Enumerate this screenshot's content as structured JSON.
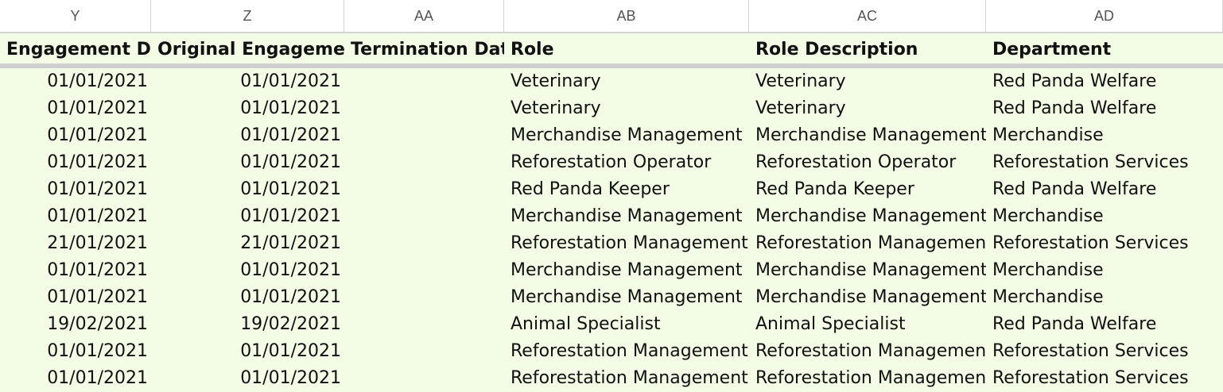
{
  "columns": [
    "Y",
    "Z",
    "AA",
    "AB",
    "AC",
    "AD"
  ],
  "headers": [
    "Engagement Date",
    "Original Engagement",
    "Termination Date",
    "Role",
    "Role Description",
    "Department"
  ],
  "rows": [
    [
      "01/01/2021",
      "01/01/2021",
      "",
      "Veterinary",
      "Veterinary",
      "Red Panda Welfare"
    ],
    [
      "01/01/2021",
      "01/01/2021",
      "",
      "Veterinary",
      "Veterinary",
      "Red Panda Welfare"
    ],
    [
      "01/01/2021",
      "01/01/2021",
      "",
      "Merchandise Management",
      "Merchandise Management",
      "Merchandise"
    ],
    [
      "01/01/2021",
      "01/01/2021",
      "",
      "Reforestation Operator",
      "Reforestation Operator",
      "Reforestation Services"
    ],
    [
      "01/01/2021",
      "01/01/2021",
      "",
      "Red Panda Keeper",
      "Red Panda Keeper",
      "Red Panda Welfare"
    ],
    [
      "01/01/2021",
      "01/01/2021",
      "",
      "Merchandise Management",
      "Merchandise Management",
      "Merchandise"
    ],
    [
      "21/01/2021",
      "21/01/2021",
      "",
      "Reforestation Management",
      "Reforestation Management",
      "Reforestation Services"
    ],
    [
      "01/01/2021",
      "01/01/2021",
      "",
      "Merchandise Management",
      "Merchandise Management",
      "Merchandise"
    ],
    [
      "01/01/2021",
      "01/01/2021",
      "",
      "Merchandise Management",
      "Merchandise Management",
      "Merchandise"
    ],
    [
      "19/02/2021",
      "19/02/2021",
      "",
      "Animal Specialist",
      "Animal Specialist",
      "Red Panda Welfare"
    ],
    [
      "01/01/2021",
      "01/01/2021",
      "",
      "Reforestation Management",
      "Reforestation Management",
      "Reforestation Services"
    ],
    [
      "01/01/2021",
      "01/01/2021",
      "",
      "Reforestation Management",
      "Reforestation Management",
      "Reforestation Services"
    ]
  ]
}
